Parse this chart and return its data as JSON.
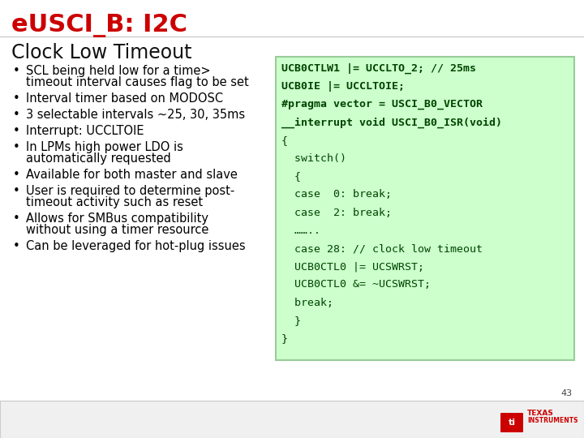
{
  "title": "eUSCI_B: I2C",
  "title_color": "#CC0000",
  "title_fontsize": 22,
  "subtitle": "Clock Low Timeout",
  "subtitle_fontsize": 17,
  "bg_color": "#FFFFFF",
  "bullets": [
    [
      "SCL being held low for a time>",
      "timeout interval causes flag to be set"
    ],
    [
      "Interval timer based on MODOSC"
    ],
    [
      "3 selectable intervals ~25, 30, 35ms"
    ],
    [
      "Interrupt: UCCLTOIE"
    ],
    [
      "In LPMs high power LDO is",
      "automatically requested"
    ],
    [
      "Available for both master and slave"
    ],
    [
      "User is required to determine post-",
      "timeout activity such as reset"
    ],
    [
      "Allows for SMBus compatibility",
      "without using a timer resource"
    ],
    [
      "Can be leveraged for hot-plug issues"
    ]
  ],
  "bullet_fontsize": 10.5,
  "bullet_color": "#000000",
  "code_box_facecolor": "#CCFFCC",
  "code_box_edgecolor": "#99CC99",
  "code_text_color": "#004400",
  "code_fontsize": 9.5,
  "code_lines": [
    {
      "text": "UCB0CTLW1 |= UCCLTO_2; // 25ms",
      "bold": true
    },
    {
      "text": "UCB0IE |= UCCLTOIE;",
      "bold": true
    },
    {
      "text": "#pragma vector = USCI_B0_VECTOR",
      "bold": true
    },
    {
      "text": "__interrupt void USCI_B0_ISR(void)",
      "bold": true
    },
    {
      "text": "{",
      "bold": false
    },
    {
      "text": "  switch()",
      "bold": false
    },
    {
      "text": "  {",
      "bold": false
    },
    {
      "text": "  case  0: break;",
      "bold": false
    },
    {
      "text": "  case  2: break;",
      "bold": false
    },
    {
      "text": "  ……..",
      "bold": false
    },
    {
      "text": "  case 28: // clock low timeout",
      "bold": false
    },
    {
      "text": "  UCB0CTL0 |= UCSWRST;",
      "bold": false
    },
    {
      "text": "  UCB0CTL0 &= ~UCSWRST;",
      "bold": false
    },
    {
      "text": "  break;",
      "bold": false
    },
    {
      "text": "  }",
      "bold": false
    },
    {
      "text": "}",
      "bold": false
    }
  ],
  "page_number": "43",
  "footer_bg": "#F0F0F0",
  "footer_border": "#CCCCCC"
}
